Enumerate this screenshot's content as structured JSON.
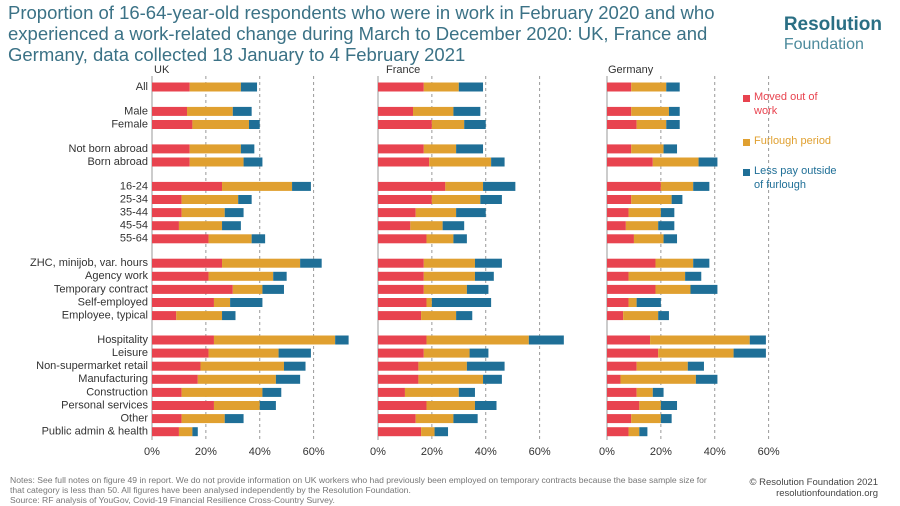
{
  "title": "Proportion of 16-64-year-old respondents who were in work in February 2020 and who experienced a work-related change during March to December 2020: UK, France and Germany, data collected 18 January to 4 February 2021",
  "logo": {
    "line1": "Resolution",
    "line2": "Foundation"
  },
  "notes": "Notes: See full notes on figure 49 in report. We do not provide information on UK workers who had previously been employed on temporary contracts because the base sample size for that category is less than 50. All figures have been analysed independently by the Resolution Foundation.",
  "source": "Source: RF analysis of YouGov, Covid-19 Financial Resilience Cross-Country Survey.",
  "copyright": "© Resolution Foundation 2021",
  "website": "resolutionfoundation.org",
  "chart_data": [
    {
      "type": "bar",
      "orientation": "horizontal",
      "stacked": true,
      "subtitle": "UK",
      "categories": [
        "All",
        "Male",
        "Female",
        "Not born abroad",
        "Born abroad",
        "16-24",
        "25-34",
        "35-44",
        "45-54",
        "55-64",
        "ZHC, minijob, var. hours",
        "Agency work",
        "Temporary contract",
        "Self-employed",
        "Employee, typical",
        "Hospitality",
        "Leisure",
        "Non-supermarket retail",
        "Manufacturing",
        "Construction",
        "Personal services",
        "Other",
        "Public admin & health"
      ],
      "xlim": [
        0,
        75
      ],
      "xticks": [
        {
          "value": 0,
          "label": "0%"
        },
        {
          "value": 20,
          "label": "20%"
        },
        {
          "value": 40,
          "label": "40%"
        },
        {
          "value": 60,
          "label": "60%"
        }
      ],
      "grid": true,
      "series": [
        {
          "color": "#e8434f",
          "values": [
            14,
            13,
            15,
            14,
            14,
            26,
            11,
            11,
            10,
            21,
            26,
            21,
            30,
            23,
            9,
            23,
            21,
            18,
            17,
            11,
            23,
            11,
            10
          ]
        },
        {
          "color": "#e0a030",
          "values": [
            19,
            17,
            21,
            19,
            20,
            26,
            21,
            16,
            16,
            16,
            29,
            24,
            11,
            6,
            17,
            45,
            26,
            31,
            29,
            30,
            17,
            16,
            5
          ]
        },
        {
          "color": "#1f6f97",
          "values": [
            6,
            7,
            4,
            5,
            7,
            7,
            5,
            7,
            7,
            5,
            8,
            5,
            8,
            12,
            5,
            5,
            12,
            8,
            9,
            7,
            6,
            7,
            2
          ]
        }
      ]
    },
    {
      "type": "bar",
      "orientation": "horizontal",
      "stacked": true,
      "subtitle": "France",
      "xlim": [
        0,
        75
      ],
      "xticks": [
        {
          "value": 0,
          "label": "0%"
        },
        {
          "value": 20,
          "label": "20%"
        },
        {
          "value": 40,
          "label": "40%"
        },
        {
          "value": 60,
          "label": "60%"
        }
      ],
      "grid": true,
      "series": [
        {
          "color": "#e8434f",
          "values": [
            17,
            13,
            20,
            17,
            19,
            25,
            20,
            14,
            12,
            18,
            17,
            17,
            17,
            18,
            16,
            18,
            17,
            15,
            15,
            10,
            18,
            14,
            16
          ]
        },
        {
          "color": "#e0a030",
          "values": [
            13,
            15,
            12,
            12,
            23,
            14,
            18,
            15,
            12,
            10,
            19,
            19,
            16,
            2,
            13,
            38,
            17,
            18,
            24,
            20,
            18,
            14,
            5
          ]
        },
        {
          "color": "#1f6f97",
          "values": [
            9,
            10,
            8,
            10,
            5,
            12,
            8,
            11,
            8,
            5,
            10,
            7,
            8,
            22,
            6,
            13,
            7,
            14,
            7,
            6,
            8,
            9,
            5
          ]
        }
      ]
    },
    {
      "type": "bar",
      "orientation": "horizontal",
      "stacked": true,
      "subtitle": "Germany",
      "xlim": [
        0,
        75
      ],
      "xticks": [
        {
          "value": 0,
          "label": "0%"
        },
        {
          "value": 20,
          "label": "20%"
        },
        {
          "value": 40,
          "label": "40%"
        },
        {
          "value": 60,
          "label": "60%"
        }
      ],
      "grid": true,
      "series": [
        {
          "name": "Moved out of work",
          "color": "#e8434f",
          "values": [
            9,
            9,
            11,
            9,
            17,
            20,
            9,
            8,
            7,
            10,
            18,
            8,
            18,
            8,
            6,
            16,
            19,
            11,
            5,
            11,
            12,
            9,
            8
          ]
        },
        {
          "name": "Furlough period",
          "color": "#e0a030",
          "values": [
            13,
            14,
            11,
            12,
            17,
            12,
            15,
            12,
            12,
            11,
            14,
            21,
            13,
            3,
            13,
            37,
            28,
            19,
            28,
            6,
            8,
            11,
            4
          ]
        },
        {
          "name": "Less pay outside of furlough",
          "color": "#1f6f97",
          "values": [
            5,
            4,
            5,
            5,
            7,
            6,
            4,
            5,
            6,
            5,
            6,
            6,
            10,
            9,
            4,
            6,
            12,
            6,
            8,
            4,
            6,
            4,
            3
          ]
        }
      ]
    }
  ]
}
